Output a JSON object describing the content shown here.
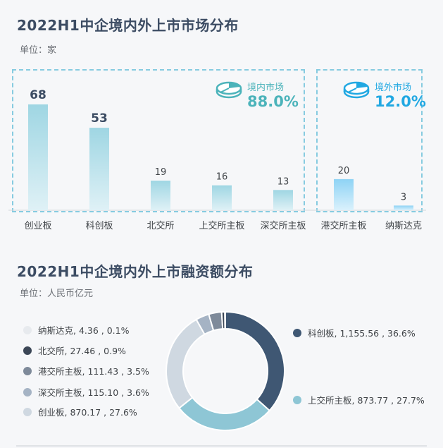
{
  "page": {
    "bar_title": "2022H1中企境内外上市市场分布",
    "bar_unit": "单位：家",
    "donut_title": "2022H1中企境内外上市融资额分布",
    "donut_unit": "单位：人民币亿元"
  },
  "badges": {
    "domestic": {
      "label": "境内市场",
      "pct": "88.0%",
      "icon": "pie-chart-icon",
      "color": "#4bb3ba"
    },
    "overseas": {
      "label": "境外市场",
      "pct": "12.0%",
      "icon": "pie-chart-icon",
      "color": "#21a8e2"
    }
  },
  "chart_data": [
    {
      "type": "bar",
      "title": "2022H1中企境内外上市市场分布",
      "unit": "单位：家",
      "categories": [
        "创业板",
        "科创板",
        "北交所",
        "上交所主板",
        "深交所主板",
        "港交所主板",
        "纳斯达克"
      ],
      "values": [
        68,
        53,
        19,
        16,
        13,
        20,
        3
      ],
      "value_labels": [
        "68",
        "53",
        "19",
        "16",
        "13",
        "20",
        "3"
      ],
      "groups": [
        "domestic",
        "domestic",
        "domestic",
        "domestic",
        "domestic",
        "overseas",
        "overseas"
      ],
      "emphasized": [
        true,
        true,
        false,
        false,
        false,
        false,
        false
      ],
      "colors": {
        "domestic": "#9fd6e3",
        "overseas": "#8ed3f5"
      }
    },
    {
      "type": "pie",
      "title": "2022H1中企境内外上市融资额分布",
      "unit": "单位：人民币亿元",
      "slices": [
        {
          "name": "科创板",
          "value": 1155.56,
          "pct": 36.6,
          "label": "科创板, 1,155.56 , 36.6%",
          "color": "#3f5773"
        },
        {
          "name": "上交所主板",
          "value": 873.77,
          "pct": 27.7,
          "label": "上交所主板, 873.77 , 27.7%",
          "color": "#8ec6d5"
        },
        {
          "name": "创业板",
          "value": 870.17,
          "pct": 27.6,
          "label": "创业板, 870.17 , 27.6%",
          "color": "#cfd8e1"
        },
        {
          "name": "深交所主板",
          "value": 115.1,
          "pct": 3.6,
          "label": "深交所主板, 115.10 , 3.6%",
          "color": "#a5b3c4"
        },
        {
          "name": "港交所主板",
          "value": 111.43,
          "pct": 3.5,
          "label": "港交所主板, 111.43 , 3.5%",
          "color": "#7e8a9a"
        },
        {
          "name": "北交所",
          "value": 27.46,
          "pct": 0.9,
          "label": "北交所, 27.46 , 0.9%",
          "color": "#3b4656"
        },
        {
          "name": "纳斯达克",
          "value": 4.36,
          "pct": 0.1,
          "label": "纳斯达克, 4.36 , 0.1%",
          "color": "#e7eaee"
        }
      ]
    }
  ]
}
